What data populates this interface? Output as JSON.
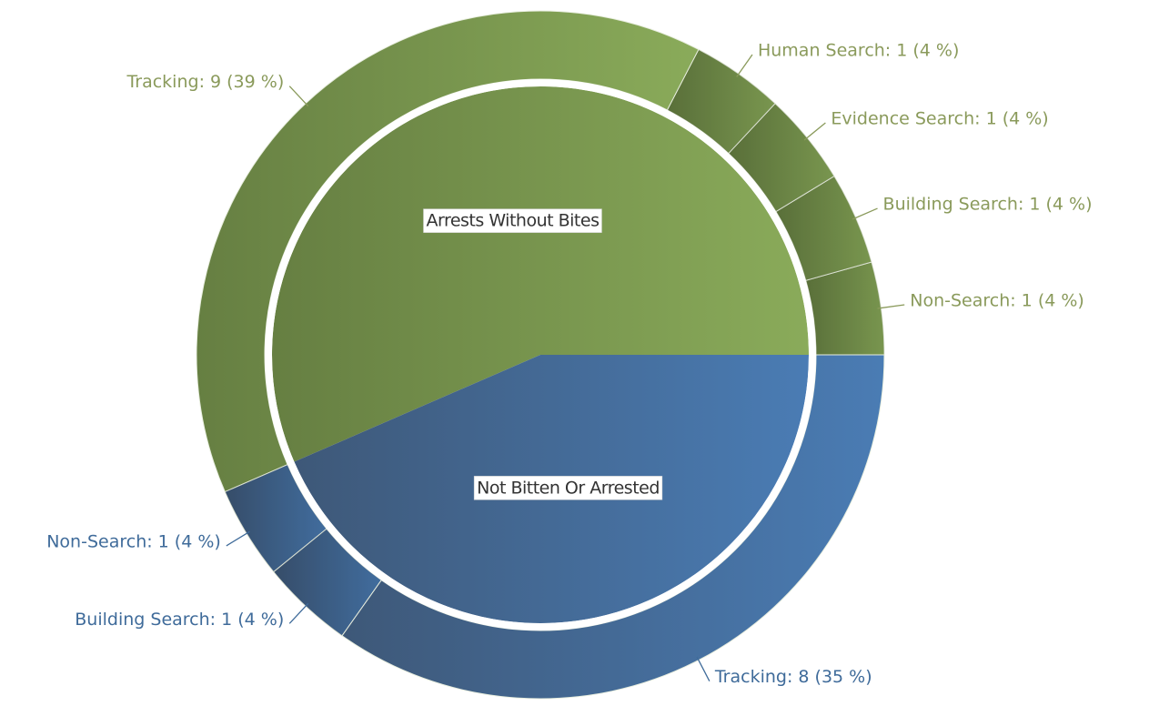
{
  "chart_data": {
    "type": "sunburst",
    "series": [
      {
        "name": "Arrests Without Bites",
        "color": "#8aab5a",
        "dark": "#667f42",
        "values": [
          1,
          1,
          1,
          1,
          9
        ],
        "value_labels": [
          "Non-Search: 1 (4 %)",
          "Building Search: 1 (4 %)",
          "Evidence Search: 1 (4 %)",
          "Human Search: 1 (4 %)",
          "Tracking: 9 (39 %)"
        ],
        "label_color": "#8a9a5b"
      },
      {
        "name": "Not Bitten Or Arrested",
        "color": "#4a7cb4",
        "dark": "#3e5878",
        "values": [
          1,
          1,
          8
        ],
        "value_labels": [
          "Non-Search: 1 (4 %)",
          "Building Search: 1 (4 %)",
          "Tracking: 8 (35 %)"
        ],
        "label_color": "#3f6b9a"
      }
    ]
  }
}
